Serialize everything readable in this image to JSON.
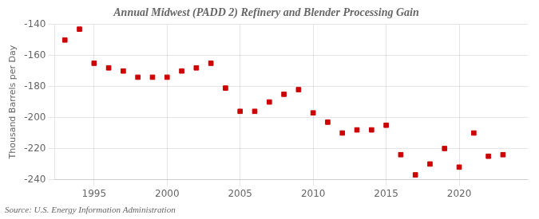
{
  "chart_data": {
    "type": "scatter",
    "title": "Annual Midwest (PADD 2) Refinery and Blender Processing Gain",
    "ylabel": "Thousand Barrels per Day",
    "annotation": "Source: U.S. Energy Information Administration",
    "x": [
      1993,
      1994,
      1995,
      1996,
      1997,
      1998,
      1999,
      2000,
      2001,
      2002,
      2003,
      2004,
      2005,
      2006,
      2007,
      2008,
      2009,
      2010,
      2011,
      2012,
      2013,
      2014,
      2015,
      2016,
      2017,
      2018,
      2019,
      2020,
      2021,
      2022,
      2023
    ],
    "values": [
      -150,
      -143,
      -165,
      -168,
      -170,
      -174,
      -174,
      -174,
      -170,
      -168,
      -165,
      -181,
      -196,
      -196,
      -190,
      -185,
      -182,
      -197,
      -203,
      -210,
      -208,
      -208,
      -205,
      -224,
      -237,
      -230,
      -220,
      -232,
      -210,
      -225,
      -224
    ],
    "color": "#cc0000",
    "marker": "square",
    "xlim": [
      1992.3,
      2024.7
    ],
    "xticks": [
      1995,
      2000,
      2005,
      2010,
      2015,
      2020
    ],
    "ylim": [
      -240,
      -140
    ],
    "yticks": [
      -240,
      -220,
      -200,
      -180,
      -160,
      -140
    ],
    "grid": true
  }
}
